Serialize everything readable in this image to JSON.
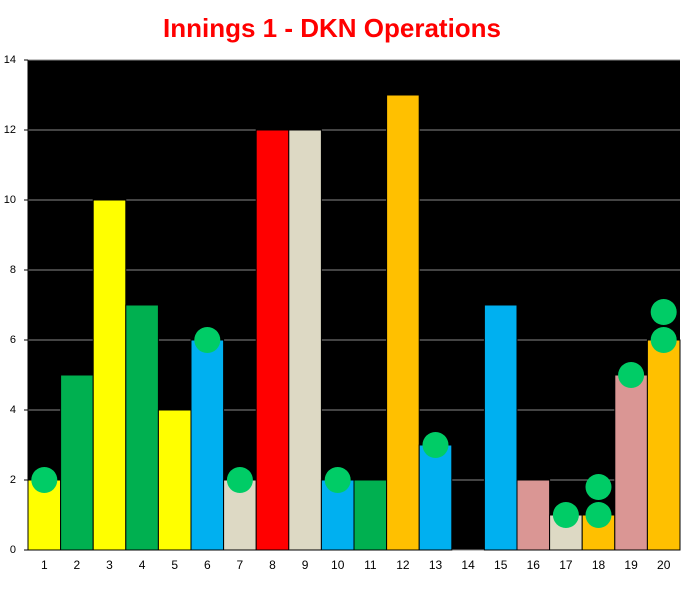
{
  "chart_data": {
    "type": "bar",
    "title": "Innings 1 - DKN Operations",
    "categories": [
      "1",
      "2",
      "3",
      "4",
      "5",
      "6",
      "7",
      "8",
      "9",
      "10",
      "11",
      "12",
      "13",
      "14",
      "15",
      "16",
      "17",
      "18",
      "19",
      "20"
    ],
    "values": [
      2,
      5,
      10,
      7,
      4,
      6,
      2,
      12,
      12,
      2,
      2,
      13,
      3,
      0,
      7,
      2,
      1,
      1,
      5,
      6
    ],
    "colors": [
      "#ffff00",
      "#00b050",
      "#ffff00",
      "#00b050",
      "#ffff00",
      "#00b0f0",
      "#ddd9c4",
      "#ff0000",
      "#ddd9c4",
      "#00b0f0",
      "#00b050",
      "#ffc000",
      "#00b0f0",
      "#ffc000",
      "#00b0f0",
      "#da9694",
      "#ddd9c4",
      "#ffc000",
      "#da9694",
      "#ffc000"
    ],
    "markers": {
      "categories": [
        "1",
        "6",
        "7",
        "10",
        "13",
        "17",
        "18",
        "18",
        "19",
        "20",
        "20"
      ],
      "values": [
        2,
        6,
        2,
        2,
        3,
        1,
        1,
        1.8,
        5,
        6,
        6.8
      ],
      "color": "#00cc66"
    },
    "ylim": [
      0,
      14
    ],
    "yticks": [
      0,
      2,
      4,
      6,
      8,
      10,
      12,
      14
    ],
    "grid": true
  }
}
